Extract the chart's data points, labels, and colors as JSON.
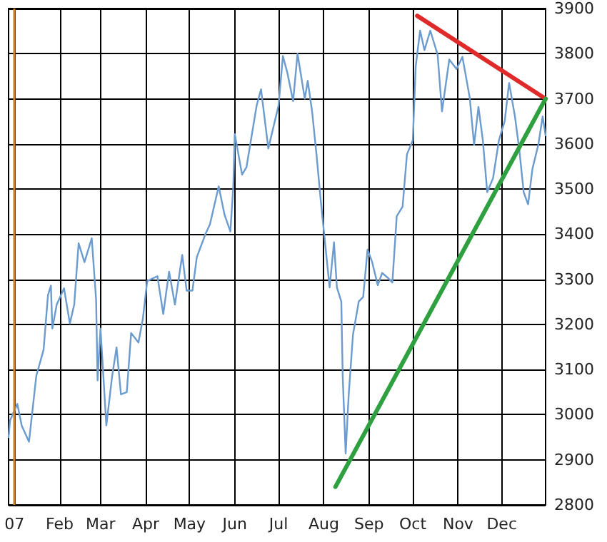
{
  "chart_data": {
    "type": "line",
    "x": [
      "2006-12-28",
      "2006-12-29",
      "2007-01-03",
      "2007-01-06",
      "2007-01-11",
      "2007-01-16",
      "2007-01-21",
      "2007-01-24",
      "2007-01-26",
      "2007-01-27",
      "2007-01-30",
      "2007-02-04",
      "2007-02-08",
      "2007-02-11",
      "2007-02-14",
      "2007-02-18",
      "2007-02-23",
      "2007-02-26",
      "2007-02-27",
      "2007-03-01",
      "2007-03-05",
      "2007-03-09",
      "2007-03-12",
      "2007-03-15",
      "2007-03-19",
      "2007-03-22",
      "2007-03-27",
      "2007-03-30",
      "2007-04-02",
      "2007-04-09",
      "2007-04-13",
      "2007-04-17",
      "2007-04-21",
      "2007-04-26",
      "2007-04-29",
      "2007-05-03",
      "2007-05-06",
      "2007-05-12",
      "2007-05-15",
      "2007-05-21",
      "2007-05-25",
      "2007-05-29",
      "2007-05-31",
      "2007-06-01",
      "2007-06-06",
      "2007-06-09",
      "2007-06-16",
      "2007-06-19",
      "2007-06-24",
      "2007-07-01",
      "2007-07-04",
      "2007-07-07",
      "2007-07-11",
      "2007-07-14",
      "2007-07-19",
      "2007-07-21",
      "2007-07-24",
      "2007-07-27",
      "2007-07-30",
      "2007-08-02",
      "2007-08-05",
      "2007-08-08",
      "2007-08-10",
      "2007-08-13",
      "2007-08-14",
      "2007-08-16",
      "2007-08-18",
      "2007-08-21",
      "2007-08-25",
      "2007-08-28",
      "2007-08-31",
      "2007-09-03",
      "2007-09-07",
      "2007-09-10",
      "2007-09-14",
      "2007-09-17",
      "2007-09-20",
      "2007-09-24",
      "2007-09-27",
      "2007-10-01",
      "2007-10-03",
      "2007-10-06",
      "2007-10-09",
      "2007-10-13",
      "2007-10-18",
      "2007-10-21",
      "2007-10-26",
      "2007-10-31",
      "2007-11-04",
      "2007-11-09",
      "2007-11-12",
      "2007-11-15",
      "2007-11-18",
      "2007-11-21",
      "2007-11-25",
      "2007-11-29",
      "2007-12-03",
      "2007-12-06",
      "2007-12-10",
      "2007-12-13",
      "2007-12-16",
      "2007-12-19",
      "2007-12-22",
      "2007-12-26",
      "2007-12-29",
      "2007-12-31"
    ],
    "series": [
      {
        "color": "#6b9bcf",
        "values": [
          2950,
          2987,
          3024,
          2976,
          2940,
          3086,
          3144,
          3265,
          3286,
          3191,
          3244,
          3280,
          3202,
          3244,
          3380,
          3338,
          3391,
          3254,
          3076,
          3191,
          2976,
          3086,
          3149,
          3045,
          3050,
          3181,
          3160,
          3212,
          3296,
          3307,
          3223,
          3317,
          3244,
          3354,
          3275,
          3275,
          3349,
          3401,
          3422,
          3506,
          3443,
          3406,
          3506,
          3622,
          3532,
          3548,
          3685,
          3721,
          3590,
          3685,
          3795,
          3758,
          3695,
          3800,
          3700,
          3740,
          3672,
          3577,
          3472,
          3377,
          3282,
          3382,
          3282,
          3251,
          3082,
          2914,
          3040,
          3177,
          3251,
          3261,
          3366,
          3340,
          3287,
          3314,
          3303,
          3293,
          3440,
          3461,
          3577,
          3608,
          3772,
          3851,
          3808,
          3851,
          3798,
          3672,
          3787,
          3766,
          3793,
          3703,
          3598,
          3682,
          3608,
          3493,
          3524,
          3608,
          3651,
          3735,
          3661,
          3587,
          3493,
          3466,
          3545,
          3598,
          3661,
          3619
        ]
      },
      {
        "type": "line",
        "x": [
          "2007-10-04",
          "2007-12-31"
        ],
        "color": "#e02a2a",
        "values": [
          3884,
          3700
        ]
      },
      {
        "type": "line",
        "x": [
          "2007-08-09",
          "2007-12-31"
        ],
        "color": "#2ea040",
        "values": [
          2840,
          3700
        ]
      }
    ],
    "xlim": [
      "2006-12-28",
      "2007-12-31"
    ],
    "xticks": [
      {
        "value": "2007-01-01",
        "label": "07"
      },
      {
        "value": "2007-02-01",
        "label": "Feb"
      },
      {
        "value": "2007-03-01",
        "label": "Mar"
      },
      {
        "value": "2007-04-01",
        "label": "Apr"
      },
      {
        "value": "2007-05-01",
        "label": "May"
      },
      {
        "value": "2007-06-01",
        "label": "Jun"
      },
      {
        "value": "2007-07-01",
        "label": "Jul"
      },
      {
        "value": "2007-08-01",
        "label": "Aug"
      },
      {
        "value": "2007-09-01",
        "label": "Sep"
      },
      {
        "value": "2007-10-01",
        "label": "Oct"
      },
      {
        "value": "2007-11-01",
        "label": "Nov"
      },
      {
        "value": "2007-12-01",
        "label": "Dec"
      }
    ],
    "ylim": [
      2800,
      3900
    ],
    "yticks": [
      2800,
      2900,
      3000,
      3100,
      3200,
      3300,
      3400,
      3500,
      3600,
      3700,
      3800,
      3900
    ],
    "grid": true,
    "marker": "none",
    "ref_lines": [
      {
        "axis": "x",
        "value": "2007-01-01",
        "color": "#d08020"
      }
    ]
  }
}
